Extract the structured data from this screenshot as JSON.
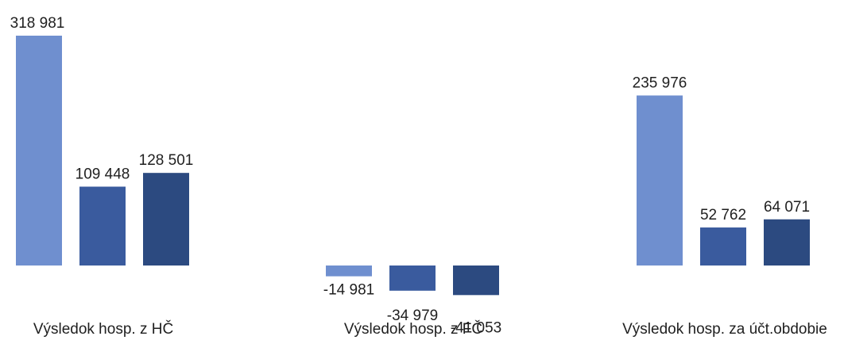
{
  "chart_data": {
    "type": "bar",
    "categories": [
      "Výsledok hosp. z HČ",
      "Výsledok hosp. z FČ",
      "Výsledok hosp. za účt.obdobie"
    ],
    "series": [
      {
        "color": "#6f8fcf",
        "values": [
          318981,
          -14981,
          235976
        ]
      },
      {
        "color": "#3a5b9e",
        "values": [
          109448,
          -34979,
          52762
        ]
      },
      {
        "color": "#2c4a80",
        "values": [
          128501,
          -41053,
          64071
        ]
      }
    ],
    "data_labels": [
      [
        "318 981",
        "-14 981",
        "235 976"
      ],
      [
        "109 448",
        "-34 979",
        "52 762"
      ],
      [
        "128 501",
        "-41 053",
        "64 071"
      ]
    ],
    "ylim": [
      -45000,
      320000
    ],
    "grid": false,
    "legend": "none"
  }
}
